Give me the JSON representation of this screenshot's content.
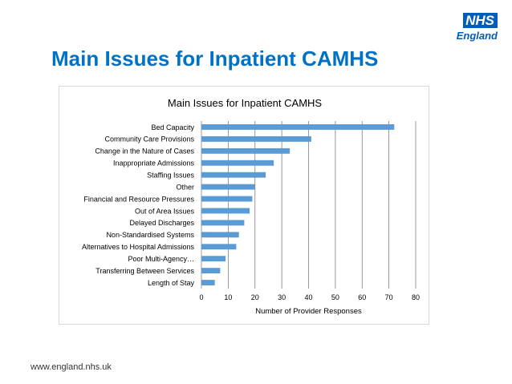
{
  "logo": {
    "nhs": "NHS",
    "region": "England"
  },
  "slide_title": "Main Issues for Inpatient CAMHS",
  "footer_url": "www.england.nhs.uk",
  "colors": {
    "bar": "#5B9BD5",
    "title": "#0072C6",
    "nhs_blue": "#005EB8",
    "grid": "#808080"
  },
  "chart_data": {
    "type": "bar",
    "orientation": "horizontal",
    "title": "Main Issues for Inpatient CAMHS",
    "xlabel": "Number of Provider Responses",
    "ylabel": "",
    "xlim": [
      0,
      80
    ],
    "xticks": [
      0,
      10,
      20,
      30,
      40,
      50,
      60,
      70,
      80
    ],
    "grid": true,
    "categories": [
      "Bed Capacity",
      "Community Care Provisions",
      "Change in the Nature of Cases",
      "Inappropriate Admissions",
      "Staffing Issues",
      "Other",
      "Financial and Resource Pressures",
      "Out of Area Issues",
      "Delayed Discharges",
      "Non-Standardised Systems",
      "Alternatives to Hospital Admissions",
      "Poor Multi-Agency…",
      "Transferring Between Services",
      "Length of Stay"
    ],
    "values": [
      72,
      41,
      33,
      27,
      24,
      20,
      19,
      18,
      16,
      14,
      13,
      9,
      7,
      5
    ]
  }
}
